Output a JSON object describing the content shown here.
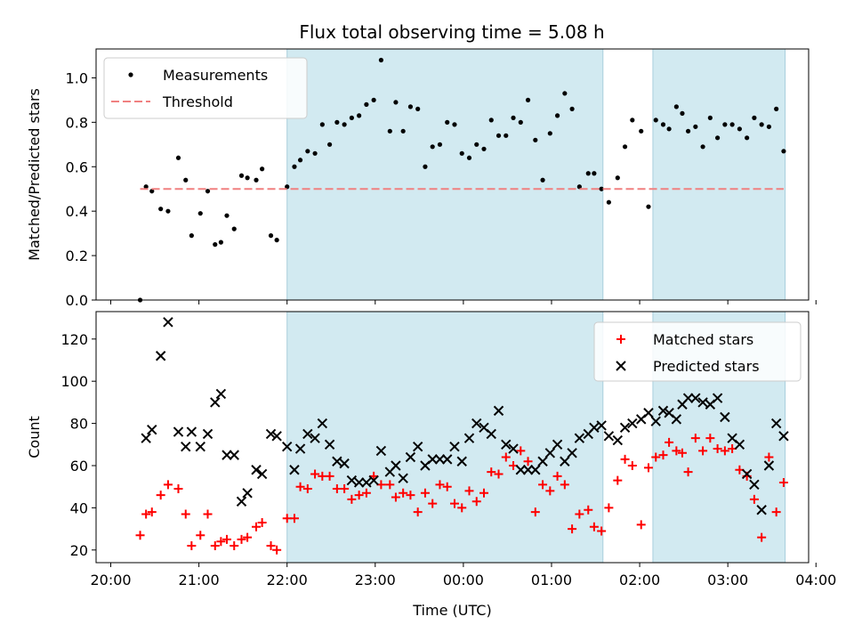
{
  "title": "Flux total observing time = 5.08 h",
  "chart_data": [
    {
      "type": "scatter",
      "ylabel": "Matched/Predicted stars",
      "ylim": [
        0,
        1.13
      ],
      "yticks": [
        0.0,
        0.2,
        0.4,
        0.6,
        0.8,
        1.0
      ],
      "ytick_labels": [
        "0.0",
        "0.2",
        "0.4",
        "0.6",
        "0.8",
        "1.0"
      ],
      "xlim": [
        -10,
        475
      ],
      "xtick_labels_hidden": true,
      "grid": false,
      "legend_position": "top-left",
      "shaded_regions": [
        [
          120,
          335
        ],
        [
          369,
          459
        ]
      ],
      "shade_color": "#add8e6",
      "series": [
        {
          "name": "Measurements",
          "marker": "dot",
          "color": "#000000",
          "x": [
            20,
            24,
            28,
            34,
            39,
            46,
            51,
            55,
            61,
            66,
            71,
            75,
            79,
            84,
            89,
            93,
            99,
            103,
            109,
            113,
            120,
            125,
            129,
            134,
            139,
            144,
            149,
            154,
            159,
            164,
            169,
            174,
            179,
            184,
            190,
            194,
            199,
            204,
            209,
            214,
            219,
            224,
            229,
            234,
            239,
            244,
            249,
            254,
            259,
            264,
            269,
            274,
            279,
            284,
            289,
            294,
            299,
            304,
            309,
            314,
            319,
            325,
            329,
            334,
            339,
            345,
            350,
            355,
            361,
            366,
            371,
            376,
            380,
            385,
            389,
            393,
            398,
            403,
            408,
            413,
            418,
            423,
            428,
            433,
            438,
            443,
            448,
            453,
            458
          ],
          "y": [
            0.0,
            0.51,
            0.49,
            0.41,
            0.4,
            0.64,
            0.54,
            0.29,
            0.39,
            0.49,
            0.25,
            0.26,
            0.38,
            0.32,
            0.56,
            0.55,
            0.54,
            0.59,
            0.29,
            0.27,
            0.51,
            0.6,
            0.63,
            0.67,
            0.66,
            0.79,
            0.7,
            0.8,
            0.79,
            0.82,
            0.83,
            0.88,
            0.9,
            1.08,
            0.76,
            0.89,
            0.76,
            0.87,
            0.86,
            0.6,
            0.69,
            0.7,
            0.8,
            0.79,
            0.66,
            0.64,
            0.7,
            0.68,
            0.81,
            0.74,
            0.74,
            0.82,
            0.8,
            0.9,
            0.72,
            0.54,
            0.75,
            0.83,
            0.93,
            0.86,
            0.51,
            0.57,
            0.57,
            0.5,
            0.44,
            0.55,
            0.69,
            0.81,
            0.76,
            0.42,
            0.81,
            0.79,
            0.77,
            0.87,
            0.84,
            0.76,
            0.78,
            0.69,
            0.82,
            0.73,
            0.79,
            0.79,
            0.77,
            0.73,
            0.82,
            0.79,
            0.78,
            0.86,
            0.67
          ]
        },
        {
          "name": "Threshold",
          "marker": "dashed-line",
          "color": "#f08080",
          "x": [
            20,
            458
          ],
          "y": [
            0.5,
            0.5
          ]
        }
      ]
    },
    {
      "type": "scatter",
      "xlabel": "Time (UTC)",
      "ylabel": "Count",
      "ylim": [
        14,
        133
      ],
      "yticks": [
        20,
        40,
        60,
        80,
        100,
        120
      ],
      "ytick_labels": [
        "20",
        "40",
        "60",
        "80",
        "100",
        "120"
      ],
      "xlim": [
        -10,
        475
      ],
      "xticks": [
        0,
        60,
        120,
        180,
        240,
        300,
        360,
        420,
        480
      ],
      "xtick_labels": [
        "20:00",
        "21:00",
        "22:00",
        "23:00",
        "00:00",
        "01:00",
        "02:00",
        "03:00",
        "04:00"
      ],
      "grid": false,
      "legend_position": "top-right",
      "shaded_regions": [
        [
          120,
          335
        ],
        [
          369,
          459
        ]
      ],
      "shade_color": "#add8e6",
      "series": [
        {
          "name": "Matched stars",
          "marker": "plus",
          "color": "#ff0000",
          "x": [
            20,
            24,
            28,
            34,
            39,
            46,
            51,
            55,
            61,
            66,
            71,
            75,
            79,
            84,
            89,
            93,
            99,
            103,
            109,
            113,
            120,
            125,
            129,
            134,
            139,
            144,
            149,
            154,
            159,
            164,
            169,
            174,
            179,
            184,
            190,
            194,
            199,
            204,
            209,
            214,
            219,
            224,
            229,
            234,
            239,
            244,
            249,
            254,
            259,
            264,
            269,
            274,
            279,
            284,
            289,
            294,
            299,
            304,
            309,
            314,
            319,
            325,
            329,
            334,
            339,
            345,
            350,
            355,
            361,
            366,
            371,
            376,
            380,
            385,
            389,
            393,
            398,
            403,
            408,
            413,
            418,
            423,
            428,
            433,
            438,
            443,
            448,
            453,
            458
          ],
          "y": [
            27,
            37,
            38,
            46,
            51,
            49,
            37,
            22,
            27,
            37,
            22,
            24,
            25,
            22,
            25,
            26,
            31,
            33,
            22,
            20,
            35,
            35,
            50,
            49,
            56,
            55,
            55,
            49,
            49,
            44,
            46,
            47,
            55,
            51,
            51,
            45,
            47,
            46,
            38,
            47,
            42,
            51,
            50,
            42,
            40,
            48,
            43,
            47,
            57,
            56,
            64,
            60,
            67,
            62,
            38,
            51,
            48,
            55,
            51,
            30,
            37,
            39,
            31,
            29,
            40,
            53,
            63,
            60,
            32,
            59,
            64,
            65,
            71,
            67,
            66,
            57,
            73,
            67,
            73,
            68,
            67,
            68,
            58,
            55,
            44,
            26,
            64,
            38,
            52
          ]
        },
        {
          "name": "Predicted stars",
          "marker": "x",
          "color": "#000000",
          "x": [
            24,
            28,
            34,
            39,
            46,
            51,
            55,
            61,
            66,
            71,
            75,
            79,
            84,
            89,
            93,
            99,
            103,
            109,
            113,
            120,
            125,
            129,
            134,
            139,
            144,
            149,
            154,
            159,
            164,
            169,
            174,
            179,
            184,
            190,
            194,
            199,
            204,
            209,
            214,
            219,
            224,
            229,
            234,
            239,
            244,
            249,
            254,
            259,
            264,
            269,
            274,
            279,
            284,
            289,
            294,
            299,
            304,
            309,
            314,
            319,
            325,
            329,
            334,
            339,
            345,
            350,
            355,
            361,
            366,
            371,
            376,
            380,
            385,
            389,
            393,
            398,
            403,
            408,
            413,
            418,
            423,
            428,
            433,
            438,
            443,
            448,
            453,
            458
          ],
          "y": [
            73,
            77,
            112,
            128,
            76,
            69,
            76,
            69,
            75,
            90,
            94,
            65,
            65,
            43,
            47,
            58,
            56,
            75,
            74,
            69,
            58,
            68,
            75,
            73,
            80,
            70,
            62,
            61,
            53,
            52,
            52,
            53,
            67,
            57,
            60,
            54,
            64,
            69,
            60,
            63,
            63,
            63,
            69,
            62,
            73,
            80,
            78,
            75,
            86,
            70,
            68,
            58,
            58,
            58,
            62,
            66,
            70,
            62,
            66,
            73,
            75,
            78,
            79,
            74,
            72,
            78,
            80,
            82,
            85,
            81,
            86,
            85,
            82,
            89,
            92,
            92,
            90,
            89,
            92,
            83,
            73,
            70,
            56,
            51,
            39,
            60,
            80,
            74
          ]
        }
      ]
    }
  ]
}
